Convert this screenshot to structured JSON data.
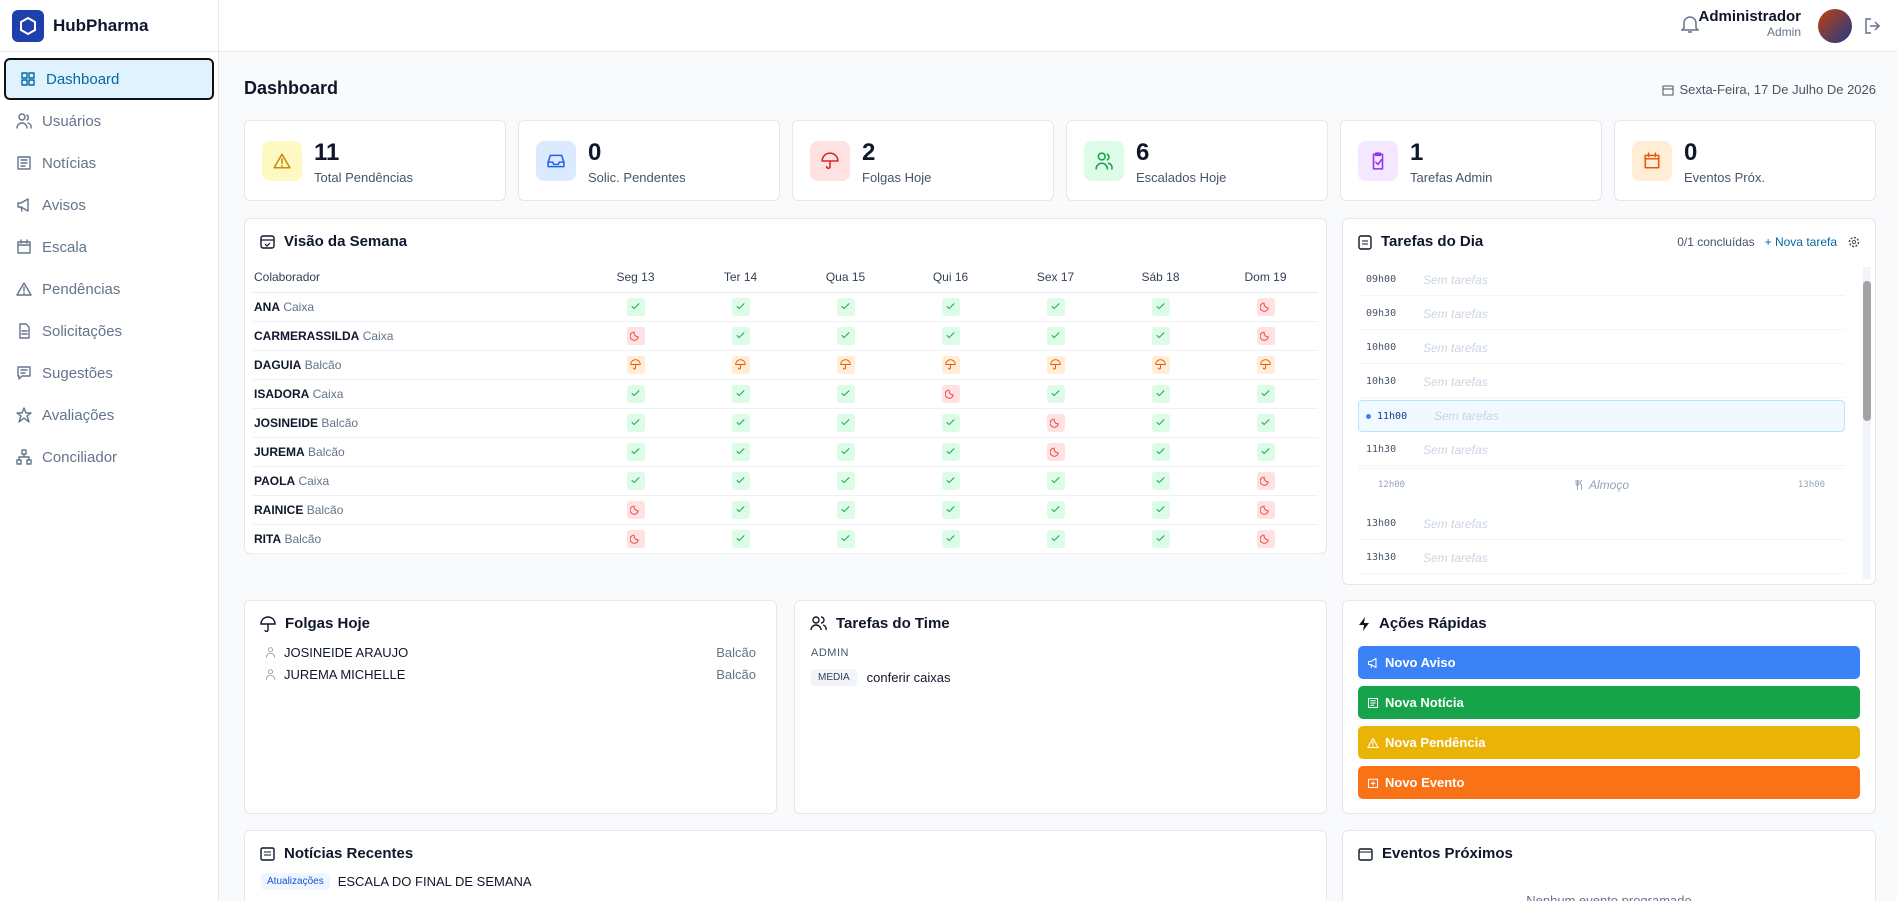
{
  "sidebar": {
    "brand": "HubPharma",
    "nav": [
      "Dashboard",
      "Usuários",
      "Notícias",
      "Avisos",
      "Escala",
      "Pendências",
      "Solicitações",
      "Sugestões",
      "Avaliações",
      "Conciliador"
    ]
  },
  "header": {
    "user_name": "Administrador",
    "user_role": "Admin"
  },
  "page": {
    "title": "Dashboard",
    "date": "Sexta-Feira, 17 De Julho De 2026"
  },
  "stats": [
    {
      "value": 11,
      "label": "Total Pendências"
    },
    {
      "value": 0,
      "label": "Solic. Pendentes"
    },
    {
      "value": 2,
      "label": "Folgas Hoje"
    },
    {
      "value": 6,
      "label": "Escalados Hoje"
    },
    {
      "value": 1,
      "label": "Tarefas Admin"
    },
    {
      "value": 0,
      "label": "Eventos Próx."
    }
  ],
  "week": {
    "title": "Visão da Semana",
    "first_column": "Colaborador",
    "days": [
      "Seg 13",
      "Ter 14",
      "Qua 15",
      "Qui 16",
      "Sex 17",
      "Sáb 18",
      "Dom 19"
    ],
    "rows": [
      {
        "name": "ANA",
        "role": "Caixa"
      },
      {
        "name": "CARMERASSILDA",
        "role": "Caixa"
      },
      {
        "name": "DAGUIA",
        "role": "Balcão"
      },
      {
        "name": "ISADORA",
        "role": "Caixa"
      },
      {
        "name": "JOSINEIDE",
        "role": "Balcão"
      },
      {
        "name": "JUREMA",
        "role": "Balcão"
      },
      {
        "name": "PAOLA",
        "role": "Caixa"
      },
      {
        "name": "RAINICE",
        "role": "Balcão"
      },
      {
        "name": "RITA",
        "role": "Balcão"
      }
    ]
  },
  "tasks_day": {
    "title": "Tarefas do Dia",
    "progress": "0/1 concluídas",
    "new_task": "+ Nova tarefa",
    "slots": [
      {
        "time": "09h00",
        "text": "Sem tarefas"
      },
      {
        "time": "09h30",
        "text": "Sem tarefas"
      },
      {
        "time": "10h00",
        "text": "Sem tarefas"
      },
      {
        "time": "10h30",
        "text": "Sem tarefas"
      },
      {
        "time": "11h00",
        "text": "Sem tarefas"
      },
      {
        "time": "11h30",
        "text": "Sem tarefas"
      }
    ],
    "lunch": {
      "start": "12h00",
      "label": "Almoço",
      "end": "13h00"
    },
    "slots_after": [
      {
        "time": "13h00",
        "text": "Sem tarefas"
      },
      {
        "time": "13h30",
        "text": "Sem tarefas"
      }
    ]
  },
  "folgas": {
    "title": "Folgas Hoje",
    "items": [
      {
        "name": "JOSINEIDE ARAUJO",
        "role": "Balcão"
      },
      {
        "name": "JUREMA MICHELLE",
        "role": "Balcão"
      }
    ]
  },
  "team": {
    "title": "Tarefas do Time",
    "group": "ADMIN",
    "tasks": [
      {
        "priority": "MEDIA",
        "text": "conferir caixas"
      }
    ]
  },
  "actions": {
    "title": "Ações Rápidas",
    "buttons": [
      "Novo Aviso",
      "Nova Notícia",
      "Nova Pendência",
      "Novo Evento"
    ]
  },
  "news": {
    "title": "Notícias Recentes",
    "items": [
      {
        "tag": "Atualizações",
        "text": "ESCALA DO FINAL DE SEMANA"
      }
    ]
  },
  "events": {
    "title": "Eventos Próximos",
    "empty": "Nenhum evento programado"
  }
}
